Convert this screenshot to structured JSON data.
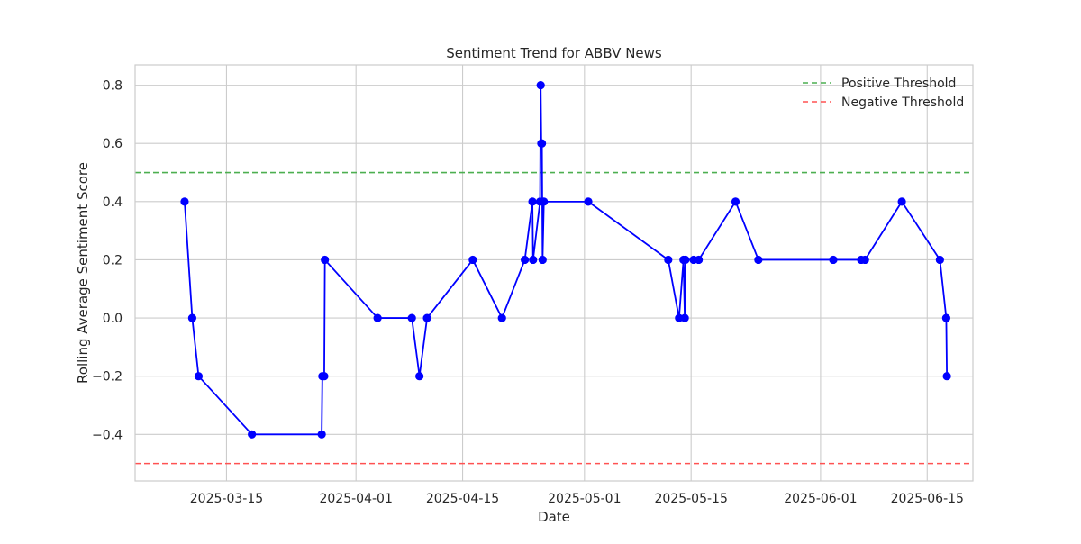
{
  "chart_data": {
    "type": "line",
    "title": "Sentiment Trend for ABBV News",
    "xlabel": "Date",
    "ylabel": "Rolling Average Sentiment Score",
    "x_axis_kind": "date",
    "xlim": [
      "2025-03-03",
      "2025-06-21"
    ],
    "ylim": [
      -0.56,
      0.87
    ],
    "x_ticks": [
      "2025-03-15",
      "2025-04-01",
      "2025-04-15",
      "2025-05-01",
      "2025-05-15",
      "2025-06-01",
      "2025-06-15"
    ],
    "y_ticks": [
      -0.4,
      -0.2,
      0.0,
      0.2,
      0.4,
      0.6,
      0.8
    ],
    "y_tick_labels": [
      "−0.4",
      "−0.2",
      "0.0",
      "0.2",
      "0.4",
      "0.6",
      "0.8"
    ],
    "grid": true,
    "legend_position": "top-right",
    "series": [
      {
        "color": "#0000ff",
        "marker": "circle",
        "points": [
          {
            "x": "2025-03-09T12:00",
            "y": 0.4
          },
          {
            "x": "2025-03-10T12:00",
            "y": 0.0
          },
          {
            "x": "2025-03-11T08:00",
            "y": -0.2
          },
          {
            "x": "2025-03-18T08:00",
            "y": -0.4
          },
          {
            "x": "2025-03-27T12:00",
            "y": -0.4
          },
          {
            "x": "2025-03-27T14:00",
            "y": -0.2
          },
          {
            "x": "2025-03-27T20:00",
            "y": -0.2
          },
          {
            "x": "2025-03-27T22:00",
            "y": 0.2
          },
          {
            "x": "2025-04-03T20:00",
            "y": 0.0
          },
          {
            "x": "2025-04-08T08:00",
            "y": 0.0
          },
          {
            "x": "2025-04-09T08:00",
            "y": -0.2
          },
          {
            "x": "2025-04-10T08:00",
            "y": 0.0
          },
          {
            "x": "2025-04-16T08:00",
            "y": 0.2
          },
          {
            "x": "2025-04-20T04:00",
            "y": 0.0
          },
          {
            "x": "2025-04-23T04:00",
            "y": 0.2
          },
          {
            "x": "2025-04-24T04:00",
            "y": 0.4
          },
          {
            "x": "2025-04-24T06:00",
            "y": 0.2
          },
          {
            "x": "2025-04-25T04:00",
            "y": 0.4
          },
          {
            "x": "2025-04-25T06:00",
            "y": 0.8
          },
          {
            "x": "2025-04-25T08:00",
            "y": 0.6
          },
          {
            "x": "2025-04-25T10:00",
            "y": 0.6
          },
          {
            "x": "2025-04-25T12:00",
            "y": 0.2
          },
          {
            "x": "2025-04-25T16:00",
            "y": 0.4
          },
          {
            "x": "2025-05-01T12:00",
            "y": 0.4
          },
          {
            "x": "2025-05-12T00:00",
            "y": 0.2
          },
          {
            "x": "2025-05-13T10:00",
            "y": 0.0
          },
          {
            "x": "2025-05-14T00:00",
            "y": 0.2
          },
          {
            "x": "2025-05-14T04:00",
            "y": 0.0
          },
          {
            "x": "2025-05-14T06:00",
            "y": 0.2
          },
          {
            "x": "2025-05-15T08:00",
            "y": 0.2
          },
          {
            "x": "2025-05-16T00:00",
            "y": 0.2
          },
          {
            "x": "2025-05-20T20:00",
            "y": 0.4
          },
          {
            "x": "2025-05-23T20:00",
            "y": 0.2
          },
          {
            "x": "2025-06-02T16:00",
            "y": 0.2
          },
          {
            "x": "2025-06-06T08:00",
            "y": 0.2
          },
          {
            "x": "2025-06-06T20:00",
            "y": 0.2
          },
          {
            "x": "2025-06-11T16:00",
            "y": 0.4
          },
          {
            "x": "2025-06-16T16:00",
            "y": 0.2
          },
          {
            "x": "2025-06-17T12:00",
            "y": 0.0
          },
          {
            "x": "2025-06-17T14:00",
            "y": -0.2
          }
        ]
      }
    ],
    "reference_lines": [
      {
        "name": "Positive Threshold",
        "y": 0.5,
        "color": "#4caf50",
        "style": "dashed"
      },
      {
        "name": "Negative Threshold",
        "y": -0.5,
        "color": "#ff5252",
        "style": "dashed"
      }
    ]
  }
}
